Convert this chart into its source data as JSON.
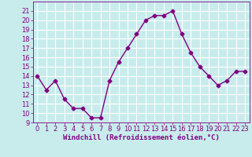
{
  "x": [
    0,
    1,
    2,
    3,
    4,
    5,
    6,
    7,
    8,
    9,
    10,
    11,
    12,
    13,
    14,
    15,
    16,
    17,
    18,
    19,
    20,
    21,
    22,
    23
  ],
  "y": [
    14,
    12.5,
    13.5,
    11.5,
    10.5,
    10.5,
    9.5,
    9.5,
    13.5,
    15.5,
    17,
    18.5,
    20,
    20.5,
    20.5,
    21,
    18.5,
    16.5,
    15,
    14,
    13,
    13.5,
    14.5,
    14.5
  ],
  "line_color": "#800080",
  "marker": "D",
  "markersize": 2.5,
  "linewidth": 1.0,
  "bg_color": "#c8ecec",
  "grid_color": "#ffffff",
  "xlabel": "Windchill (Refroidissement éolien,°C)",
  "xlabel_fontsize": 6.5,
  "tick_fontsize": 6,
  "ylim": [
    9,
    22
  ],
  "xlim": [
    -0.5,
    23.5
  ],
  "yticks": [
    9,
    10,
    11,
    12,
    13,
    14,
    15,
    16,
    17,
    18,
    19,
    20,
    21
  ],
  "xticks": [
    0,
    1,
    2,
    3,
    4,
    5,
    6,
    7,
    8,
    9,
    10,
    11,
    12,
    13,
    14,
    15,
    16,
    17,
    18,
    19,
    20,
    21,
    22,
    23
  ]
}
